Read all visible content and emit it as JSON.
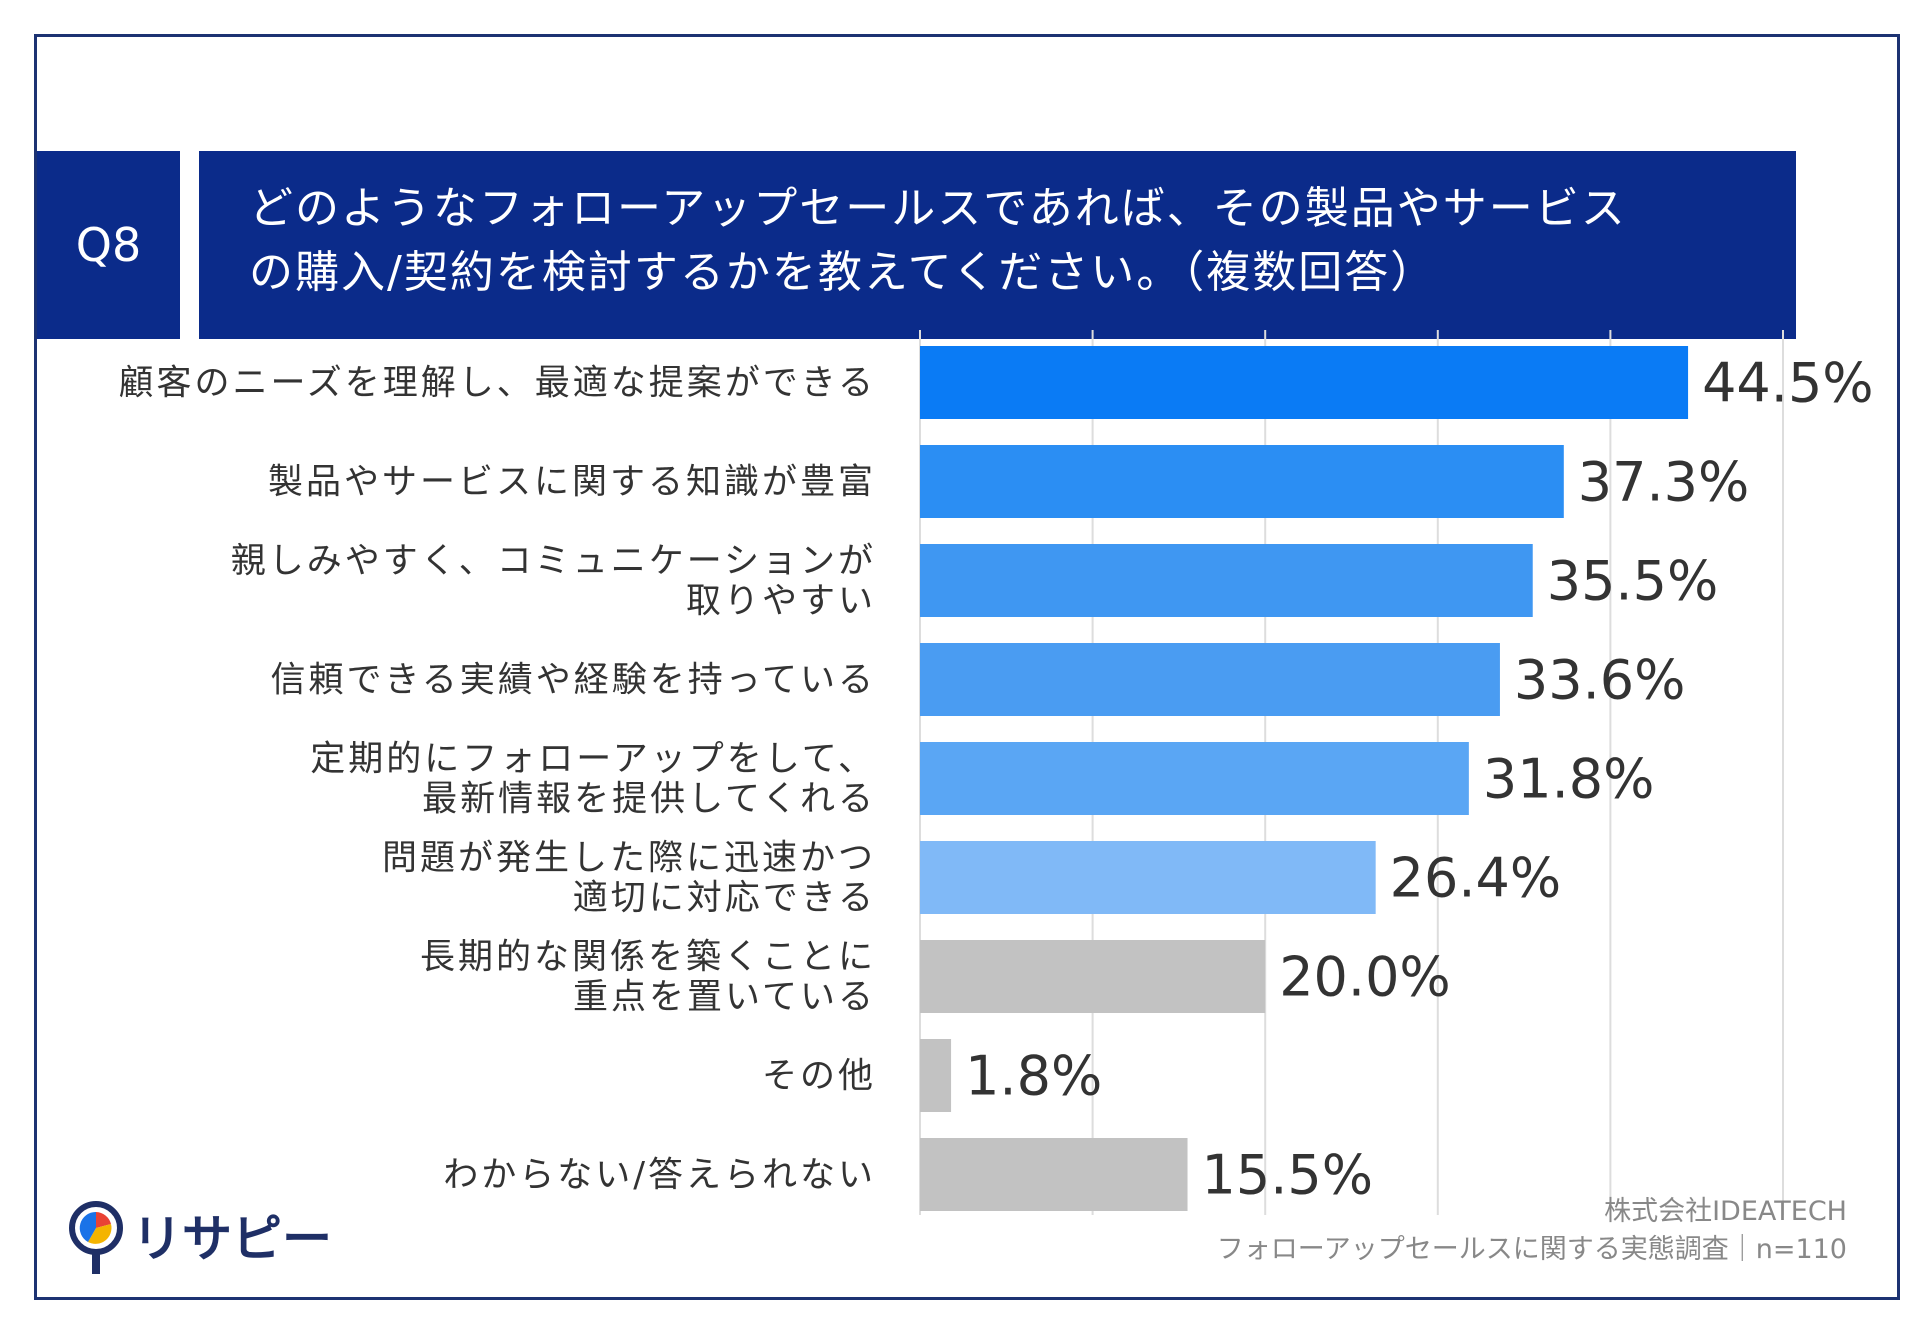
{
  "question": {
    "badge": "Q8",
    "line1": "どのようなフォローアップセールスであれば、その製品やサービス",
    "line2": "の購入/契約を検討するかを教えてください。（複数回答）"
  },
  "chart_data": {
    "type": "bar",
    "orientation": "horizontal",
    "categories": [
      [
        "顧客のニーズを理解し、最適な提案ができる"
      ],
      [
        "製品やサービスに関する知識が豊富"
      ],
      [
        "親しみやすく、コミュニケーションが",
        "取りやすい"
      ],
      [
        "信頼できる実績や経験を持っている"
      ],
      [
        "定期的にフォローアップをして、",
        "最新情報を提供してくれる"
      ],
      [
        "問題が発生した際に迅速かつ",
        "適切に対応できる"
      ],
      [
        "長期的な関係を築くことに",
        "重点を置いている"
      ],
      [
        "その他"
      ],
      [
        "わからない/答えられない"
      ]
    ],
    "values": [
      44.5,
      37.3,
      35.5,
      33.6,
      31.8,
      26.4,
      20.0,
      1.8,
      15.5
    ],
    "value_labels": [
      "44.5%",
      "37.3%",
      "35.5%",
      "33.6%",
      "31.8%",
      "26.4%",
      "20.0%",
      "1.8%",
      "15.5%"
    ],
    "colors": [
      "#0a7bf5",
      "#2b8ef3",
      "#3f97f2",
      "#4a9cf2",
      "#5aa6f4",
      "#80b9f7",
      "#c2c2c2",
      "#c2c2c2",
      "#c2c2c2"
    ],
    "xlim": [
      0,
      50
    ],
    "grid": true
  },
  "source": {
    "company": "株式会社IDEATECH",
    "survey": "フォローアップセールスに関する実態調査｜n=110"
  },
  "logo": {
    "text": "リサピー",
    "colors": [
      "#1a73e8",
      "#f4b400",
      "#e94235"
    ]
  }
}
